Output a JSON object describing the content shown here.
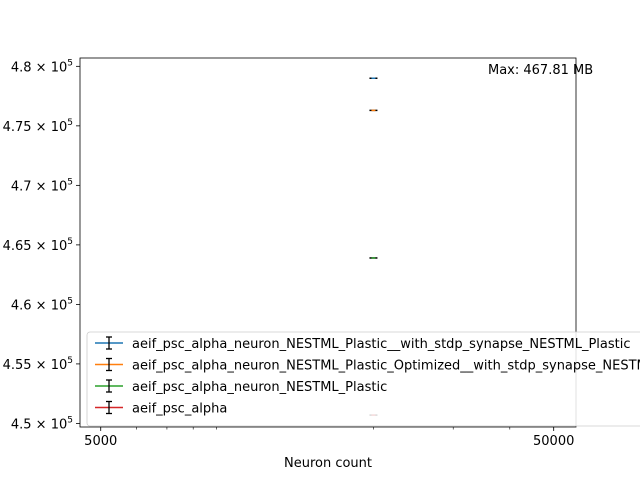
{
  "chart_data": {
    "type": "scatter",
    "xlabel": "Neuron count",
    "ylabel": "",
    "xscale": "log",
    "xlim": [
      4500,
      56000
    ],
    "ylim": [
      449700,
      480700
    ],
    "x_ticks": [
      {
        "value": 5000,
        "label": "5000"
      },
      {
        "value": 50000,
        "label": "50000"
      }
    ],
    "y_ticks": [
      {
        "value": 450000,
        "mantissa": "4.5",
        "base": "10",
        "exp": "5"
      },
      {
        "value": 455000,
        "mantissa": "4.55",
        "base": "10",
        "exp": "5"
      },
      {
        "value": 460000,
        "mantissa": "4.6",
        "base": "10",
        "exp": "5"
      },
      {
        "value": 465000,
        "mantissa": "4.65",
        "base": "10",
        "exp": "5"
      },
      {
        "value": 470000,
        "mantissa": "4.7",
        "base": "10",
        "exp": "5"
      },
      {
        "value": 475000,
        "mantissa": "4.75",
        "base": "10",
        "exp": "5"
      },
      {
        "value": 480000,
        "mantissa": "4.8",
        "base": "10",
        "exp": "5"
      }
    ],
    "annotation": "Max: 467.81 MB",
    "legend_position": "lower-left",
    "series": [
      {
        "name": "aeif_psc_alpha_neuron_NESTML_Plastic__with_stdp_synapse_NESTML_Plastic",
        "color": "#1f77b4",
        "points": [
          {
            "x": 20000,
            "y": 479000
          }
        ]
      },
      {
        "name": "aeif_psc_alpha_neuron_NESTML_Plastic_Optimized__with_stdp_synapse_NESTML_Plastic_Optimized",
        "color": "#ff7f0e",
        "points": [
          {
            "x": 20000,
            "y": 476300
          }
        ]
      },
      {
        "name": "aeif_psc_alpha_neuron_NESTML_Plastic",
        "color": "#2ca02c",
        "points": [
          {
            "x": 20000,
            "y": 463900
          }
        ]
      },
      {
        "name": "aeif_psc_alpha",
        "color": "#d62728",
        "points": [
          {
            "x": 20000,
            "y": 450700
          }
        ]
      }
    ]
  }
}
